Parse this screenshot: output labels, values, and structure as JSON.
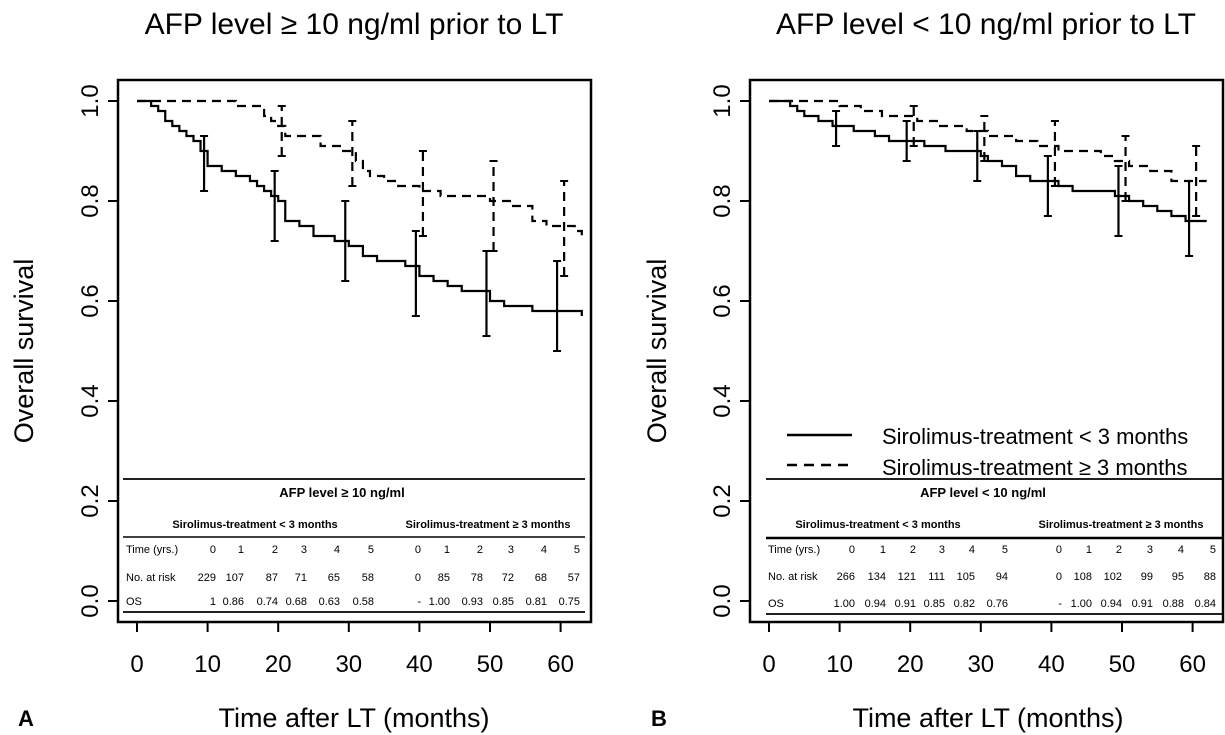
{
  "chart_data": [
    {
      "panel_letter": "A",
      "type": "line",
      "title": "AFP level ≥ 10 ng/ml prior to LT",
      "xlabel": "Time after LT (months)",
      "ylabel": "Overall survival",
      "xlim": [
        0,
        62
      ],
      "ylim": [
        0.0,
        1.0
      ],
      "x_ticks": [
        "0",
        "10",
        "20",
        "30",
        "40",
        "50",
        "60"
      ],
      "y_ticks": [
        "0.0",
        "0.2",
        "0.4",
        "0.6",
        "0.8",
        "1.0"
      ],
      "series": [
        {
          "style": "solid",
          "x": [
            0,
            2,
            3,
            4,
            5,
            6,
            7,
            8,
            9,
            10,
            12,
            14,
            16,
            17,
            18,
            19,
            20,
            21,
            23,
            25,
            28,
            30,
            32,
            34,
            36,
            38,
            40,
            42,
            44,
            46,
            48,
            50,
            52,
            56,
            60,
            63
          ],
          "y": [
            1.0,
            0.99,
            0.98,
            0.96,
            0.95,
            0.94,
            0.93,
            0.92,
            0.9,
            0.87,
            0.86,
            0.85,
            0.84,
            0.83,
            0.82,
            0.81,
            0.8,
            0.76,
            0.75,
            0.73,
            0.72,
            0.71,
            0.69,
            0.68,
            0.68,
            0.67,
            0.65,
            0.64,
            0.63,
            0.62,
            0.62,
            0.6,
            0.59,
            0.58,
            0.58,
            0.57
          ],
          "error_bars": [
            {
              "x": 9.5,
              "y_low": 0.82,
              "y_high": 0.93
            },
            {
              "x": 19.5,
              "y_low": 0.72,
              "y_high": 0.86
            },
            {
              "x": 29.5,
              "y_low": 0.64,
              "y_high": 0.8
            },
            {
              "x": 39.5,
              "y_low": 0.57,
              "y_high": 0.74
            },
            {
              "x": 49.5,
              "y_low": 0.53,
              "y_high": 0.7
            },
            {
              "x": 59.5,
              "y_low": 0.5,
              "y_high": 0.68
            }
          ]
        },
        {
          "style": "dashed",
          "x": [
            0,
            14,
            18,
            19,
            20,
            21,
            26,
            29,
            31,
            32,
            33,
            35,
            37,
            40,
            43,
            50,
            53,
            56,
            58,
            62,
            63
          ],
          "y": [
            1.0,
            0.99,
            0.97,
            0.96,
            0.95,
            0.93,
            0.91,
            0.9,
            0.88,
            0.86,
            0.85,
            0.84,
            0.83,
            0.82,
            0.81,
            0.8,
            0.79,
            0.76,
            0.75,
            0.74,
            0.72
          ],
          "error_bars": [
            {
              "x": 20.5,
              "y_low": 0.89,
              "y_high": 0.99
            },
            {
              "x": 30.5,
              "y_low": 0.83,
              "y_high": 0.96
            },
            {
              "x": 40.5,
              "y_low": 0.73,
              "y_high": 0.9
            },
            {
              "x": 50.5,
              "y_low": 0.7,
              "y_high": 0.88
            },
            {
              "x": 60.5,
              "y_low": 0.65,
              "y_high": 0.84
            }
          ]
        }
      ],
      "table": {
        "title": "AFP level  ≥ 10 ng/ml",
        "group1_title": "Sirolimus-treatment < 3 months",
        "group2_title": "Sirolimus-treatment ≥ 3 months",
        "row_labels": [
          "Time (yrs.)",
          "No. at risk",
          "OS"
        ],
        "group1_rows": [
          [
            "0",
            "1",
            "2",
            "3",
            "4",
            "5"
          ],
          [
            "229",
            "107",
            "87",
            "71",
            "65",
            "58"
          ],
          [
            "1",
            "0.86",
            "0.74",
            "0.68",
            "0.63",
            "0.58"
          ]
        ],
        "group2_rows": [
          [
            "0",
            "1",
            "2",
            "3",
            "4",
            "5"
          ],
          [
            "0",
            "85",
            "78",
            "72",
            "68",
            "57"
          ],
          [
            "-",
            "1.00",
            "0.93",
            "0.85",
            "0.81",
            "0.75"
          ]
        ]
      }
    },
    {
      "panel_letter": "B",
      "type": "line",
      "title": "AFP level < 10 ng/ml prior to LT",
      "xlabel": "Time after LT (months)",
      "ylabel": "Overall survival",
      "xlim": [
        0,
        62
      ],
      "ylim": [
        0.0,
        1.0
      ],
      "x_ticks": [
        "0",
        "10",
        "20",
        "30",
        "40",
        "50",
        "60"
      ],
      "y_ticks": [
        "0.0",
        "0.2",
        "0.4",
        "0.6",
        "0.8",
        "1.0"
      ],
      "legend": [
        {
          "style": "solid",
          "label": "Sirolimus-treatment < 3 months"
        },
        {
          "style": "dashed",
          "label": "Sirolimus-treatment  ≥ 3 months"
        }
      ],
      "series": [
        {
          "style": "solid",
          "x": [
            0,
            3,
            4,
            5,
            7,
            9,
            12,
            15,
            17,
            20,
            22,
            25,
            30,
            31,
            33,
            35,
            37,
            39,
            41,
            43,
            45,
            49,
            51,
            53,
            55,
            57,
            59,
            62
          ],
          "y": [
            1.0,
            0.99,
            0.98,
            0.97,
            0.96,
            0.95,
            0.94,
            0.93,
            0.92,
            0.92,
            0.91,
            0.9,
            0.89,
            0.88,
            0.87,
            0.85,
            0.84,
            0.84,
            0.83,
            0.82,
            0.82,
            0.81,
            0.8,
            0.79,
            0.78,
            0.77,
            0.76,
            0.76
          ],
          "error_bars": [
            {
              "x": 9.5,
              "y_low": 0.91,
              "y_high": 0.98
            },
            {
              "x": 19.5,
              "y_low": 0.88,
              "y_high": 0.96
            },
            {
              "x": 29.5,
              "y_low": 0.84,
              "y_high": 0.94
            },
            {
              "x": 39.5,
              "y_low": 0.77,
              "y_high": 0.89
            },
            {
              "x": 49.5,
              "y_low": 0.73,
              "y_high": 0.87
            },
            {
              "x": 59.5,
              "y_low": 0.69,
              "y_high": 0.84
            }
          ]
        },
        {
          "style": "dashed",
          "x": [
            0,
            10,
            13,
            16,
            21,
            24,
            28,
            31,
            35,
            38,
            41,
            44,
            47,
            49,
            51,
            54,
            57,
            62
          ],
          "y": [
            1.0,
            0.99,
            0.98,
            0.97,
            0.96,
            0.95,
            0.94,
            0.93,
            0.92,
            0.91,
            0.9,
            0.9,
            0.89,
            0.88,
            0.87,
            0.86,
            0.84,
            0.84
          ],
          "error_bars": [
            {
              "x": 20.5,
              "y_low": 0.91,
              "y_high": 0.99
            },
            {
              "x": 30.5,
              "y_low": 0.88,
              "y_high": 0.97
            },
            {
              "x": 40.5,
              "y_low": 0.83,
              "y_high": 0.96
            },
            {
              "x": 50.5,
              "y_low": 0.8,
              "y_high": 0.93
            },
            {
              "x": 60.5,
              "y_low": 0.77,
              "y_high": 0.91
            }
          ]
        }
      ],
      "table": {
        "title": "AFP level < 10 ng/ml",
        "group1_title": "Sirolimus-treatment < 3 months",
        "group2_title": "Sirolimus-treatment ≥ 3 months",
        "row_labels": [
          "Time (yrs.)",
          "No. at risk",
          "OS"
        ],
        "group1_rows": [
          [
            "0",
            "1",
            "2",
            "3",
            "4",
            "5"
          ],
          [
            "266",
            "134",
            "121",
            "111",
            "105",
            "94"
          ],
          [
            "1.00",
            "0.94",
            "0.91",
            "0.85",
            "0.82",
            "0.76"
          ]
        ],
        "group2_rows": [
          [
            "0",
            "1",
            "2",
            "3",
            "4",
            "5"
          ],
          [
            "0",
            "108",
            "102",
            "99",
            "95",
            "88"
          ],
          [
            "-",
            "1.00",
            "0.94",
            "0.91",
            "0.88",
            "0.84"
          ]
        ]
      }
    }
  ]
}
